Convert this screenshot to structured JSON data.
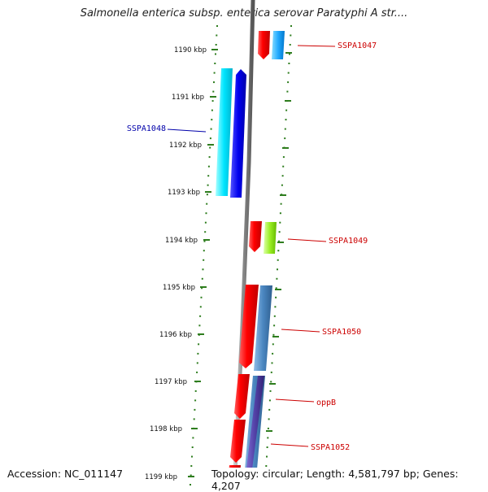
{
  "title": "Salmonella enterica subsp. enterica serovar Paratyphi A str....",
  "footer": {
    "accession": "Accession: NC_011147",
    "topology": "Topology: circular; Length: 4,581,797 bp; Genes: 4,207"
  },
  "kbp_ticks": [
    "1190 kbp",
    "1191 kbp",
    "1192 kbp",
    "1193 kbp",
    "1194 kbp",
    "1195 kbp",
    "1196 kbp",
    "1197 kbp",
    "1198 kbp",
    "1199 kbp"
  ],
  "gene_labels": [
    {
      "name": "SSPA1047",
      "color": "#cc0000"
    },
    {
      "name": "SSPA1048",
      "color": "#0000aa"
    },
    {
      "name": "SSPA1049",
      "color": "#cc0000"
    },
    {
      "name": "SSPA1050",
      "color": "#cc0000"
    },
    {
      "name": "oppB",
      "color": "#cc0000"
    },
    {
      "name": "SSPA1052",
      "color": "#cc0000"
    }
  ],
  "colors": {
    "backbone": "#8a8a8a",
    "tick_green": "#2e7d1e",
    "red": "#ff0000",
    "cyan": "#00e5ff",
    "blue": "#0000ee",
    "light_blue": "#22aaff",
    "lime": "#99ee22",
    "steel_blue": "#4a86c0",
    "purple": "#5544aa"
  }
}
